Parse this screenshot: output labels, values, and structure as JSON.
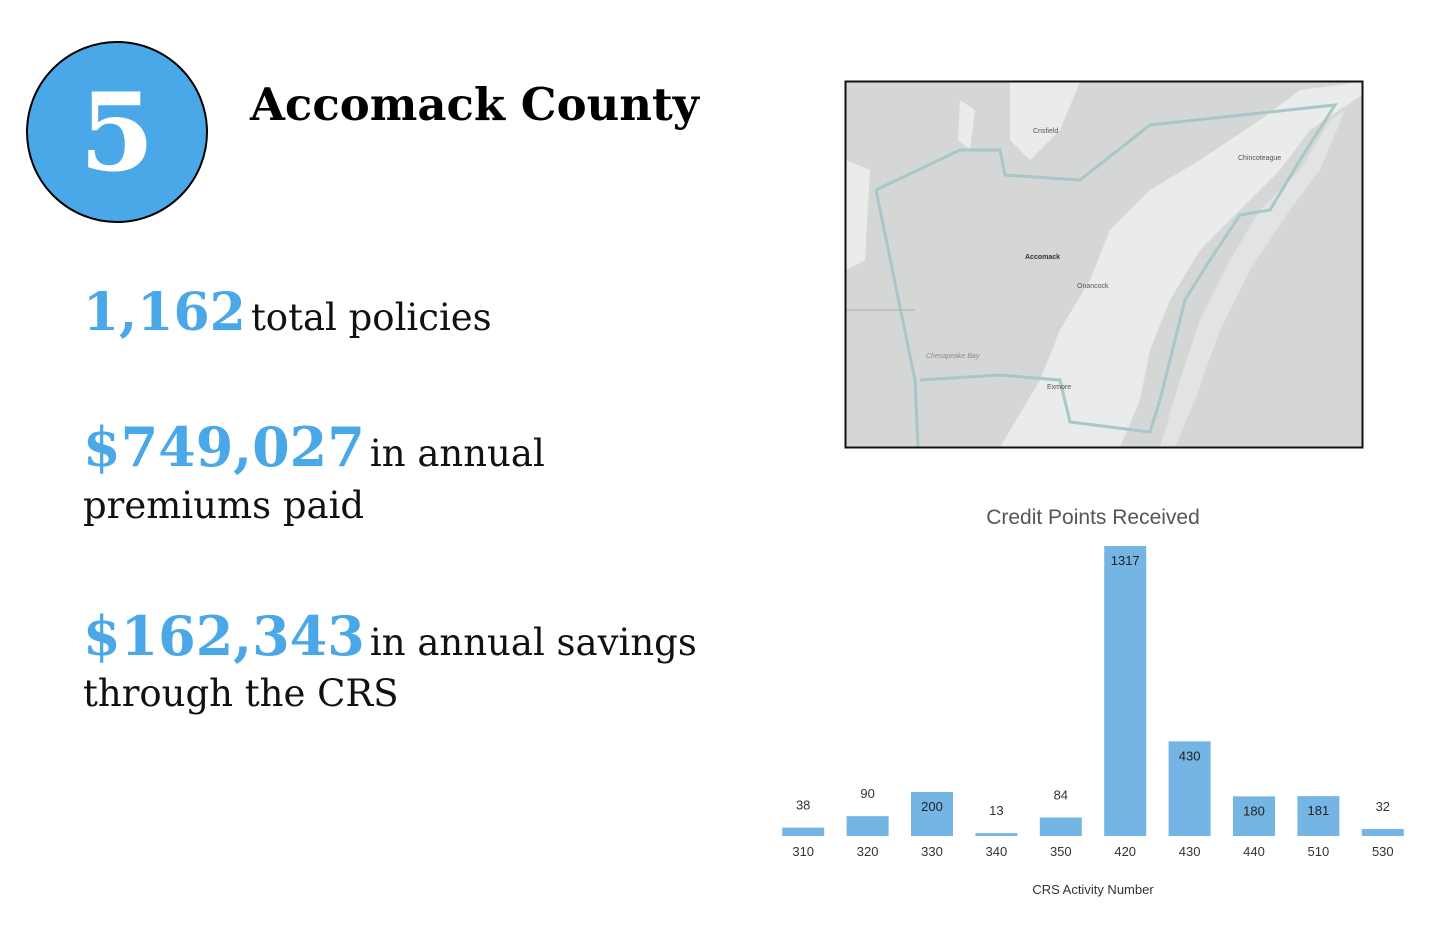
{
  "badge": "5",
  "title": "Accomack County",
  "stats": [
    {
      "value": "1,162",
      "text": "total policies"
    },
    {
      "value": "$749,027",
      "text": "in annual",
      "continuation": "premiums paid"
    },
    {
      "value": "$162,343",
      "text": "in annual savings",
      "continuation": "through the CRS"
    }
  ],
  "map": {
    "labels": [
      "Crisfield",
      "Chincoteague",
      "Accomack",
      "Onancock",
      "Chesapeake Bay",
      "Exmore"
    ]
  },
  "chart_data": {
    "type": "bar",
    "title": "Credit Points Received",
    "x_label": "CRS Activity Number",
    "categories": [
      "310",
      "320",
      "330",
      "340",
      "350",
      "420",
      "430",
      "440",
      "510",
      "530"
    ],
    "values": [
      38,
      90,
      200,
      13,
      84,
      1317,
      430,
      180,
      181,
      32
    ],
    "color": "#74b5e4"
  }
}
